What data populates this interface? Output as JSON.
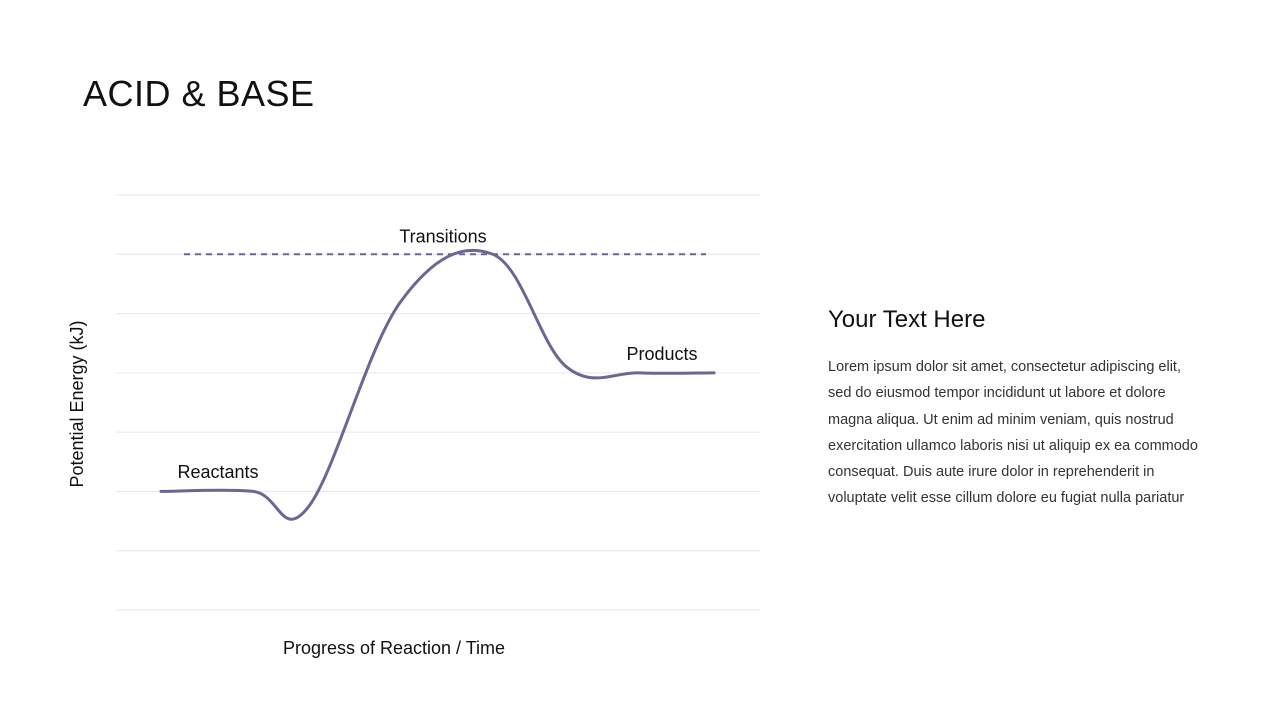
{
  "slide": {
    "title": "ACID & BASE"
  },
  "colors": {
    "curve": "#6e6596",
    "grid": "#e6e6e6",
    "text": "#111111"
  },
  "chart_data": {
    "type": "line",
    "description_labels": {
      "reactants": "Reactants",
      "transition": "Transitions",
      "products": "Products"
    },
    "xlabel": "Progress of Reaction / Time",
    "ylabel": "Potential Energy (kJ)",
    "grid": true,
    "gridline_count": 8,
    "series": [
      {
        "points": [
          {
            "x": 0.0,
            "y": 2.0
          },
          {
            "x": 1.0,
            "y": 2.0
          },
          {
            "x": 1.6,
            "y": 1.74
          },
          {
            "x": 2.6,
            "y": 5.2
          },
          {
            "x": 3.6,
            "y": 6.0
          },
          {
            "x": 4.4,
            "y": 4.1
          },
          {
            "x": 5.2,
            "y": 4.0
          },
          {
            "x": 6.0,
            "y": 4.0
          }
        ]
      }
    ],
    "transition_level": 6.0,
    "xlim": [
      0,
      6
    ],
    "ylim": [
      0,
      7
    ]
  },
  "text_panel": {
    "heading": "Your Text Here",
    "body": "Lorem ipsum dolor sit amet, consectetur adipiscing elit, sed do eiusmod tempor incididunt ut labore et dolore magna aliqua. Ut enim ad minim veniam, quis nostrud exercitation ullamco laboris nisi ut aliquip ex ea commodo consequat. Duis aute irure dolor in reprehenderit in voluptate velit esse cillum dolore eu fugiat nulla pariatur"
  }
}
